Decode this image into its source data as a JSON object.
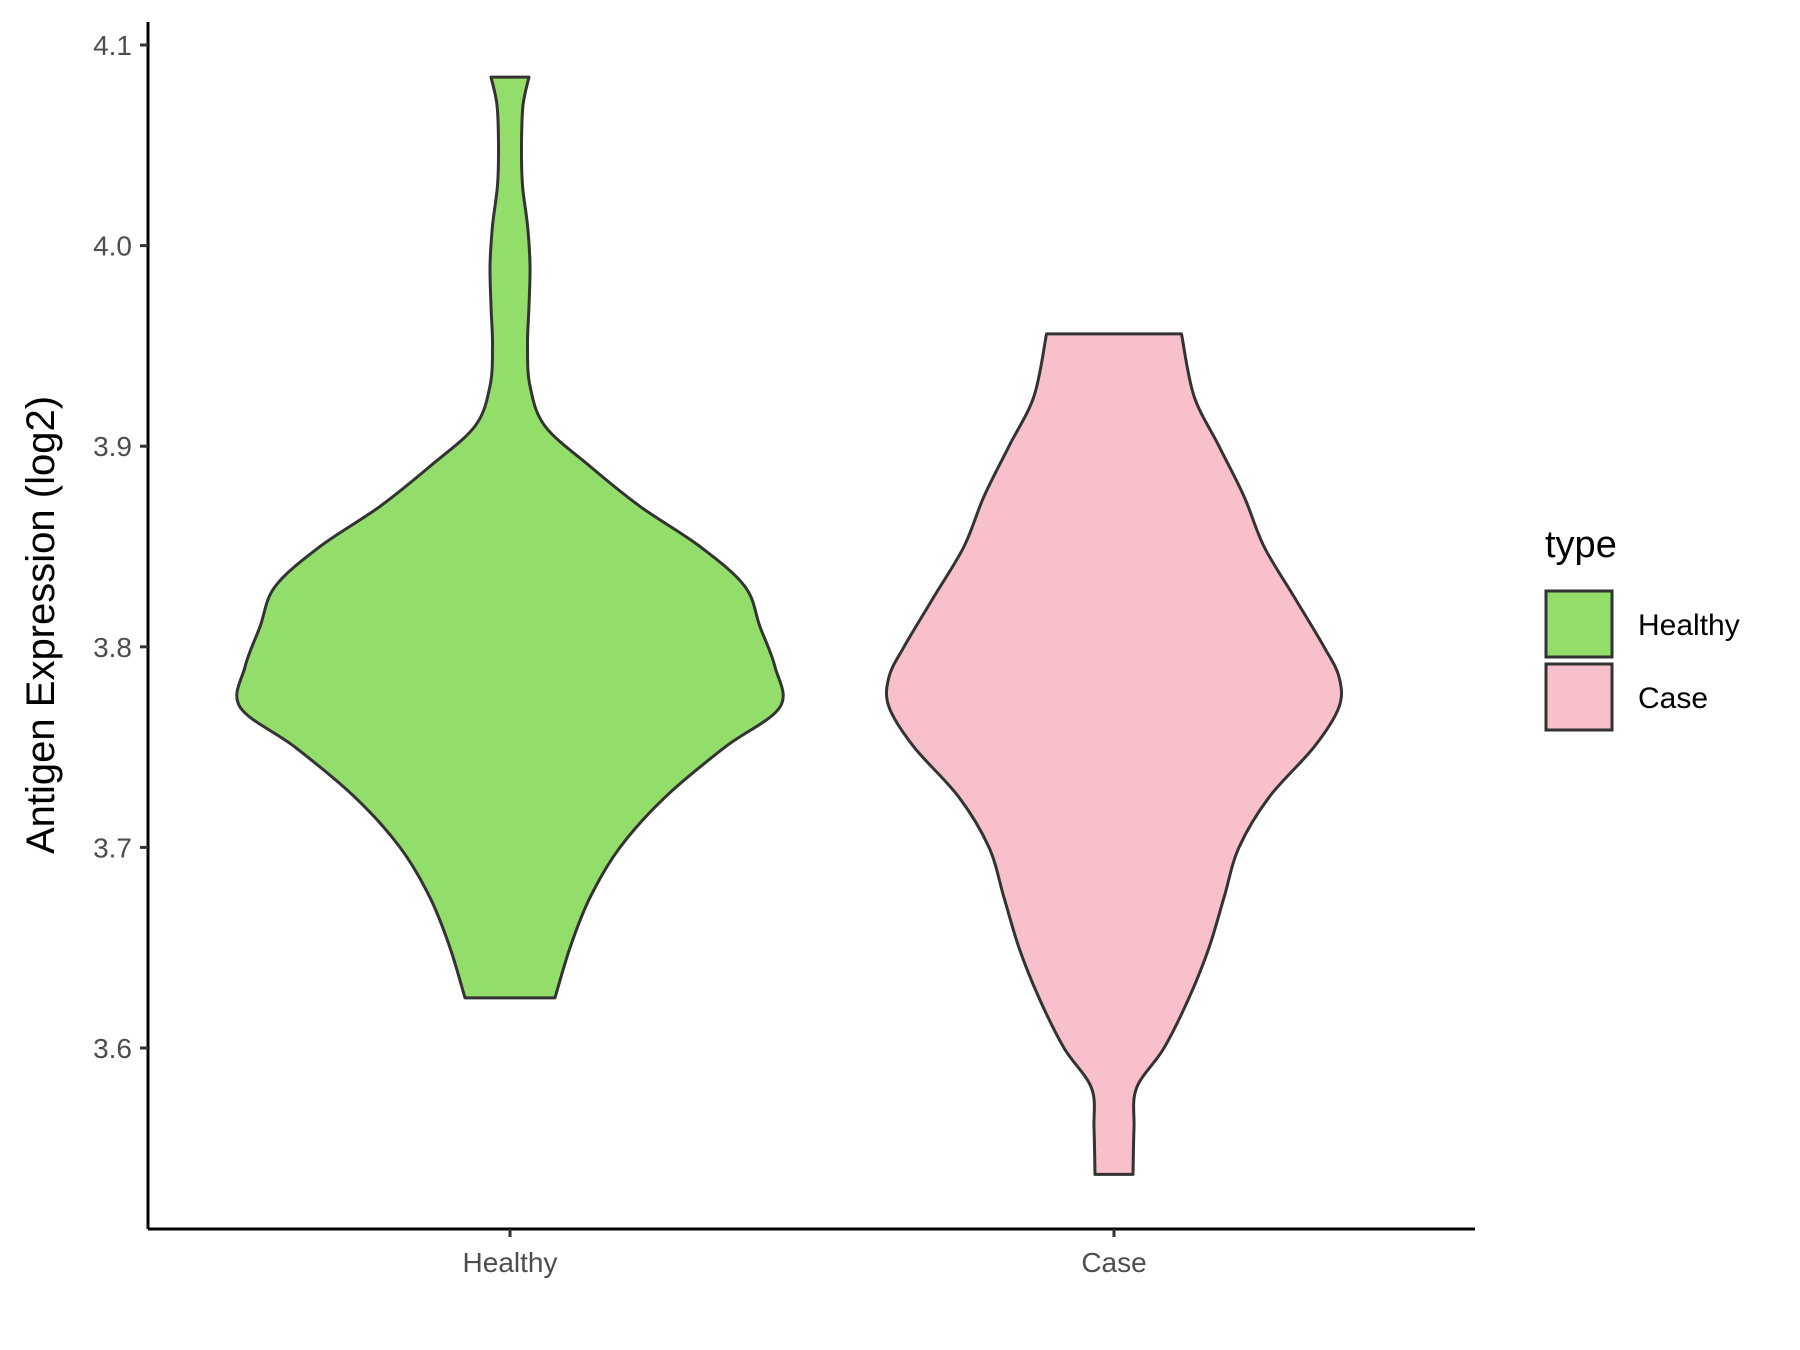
{
  "chart_data": {
    "type": "violin",
    "ylabel": "Antigen Expression (log2)",
    "xlabel": "",
    "categories": [
      "Healthy",
      "Case"
    ],
    "yticks": [
      "3.6",
      "3.7",
      "3.8",
      "3.9",
      "4.0",
      "4.1"
    ],
    "ylim": [
      3.51,
      4.11
    ],
    "legend": {
      "title": "type",
      "position": "right",
      "items": [
        {
          "label": "Healthy",
          "color": "#93dd6a"
        },
        {
          "label": "Case",
          "color": "#f7c0cb"
        }
      ]
    },
    "series": [
      {
        "category": "Healthy",
        "color": "#93dd6a",
        "min": 3.625,
        "max": 4.084,
        "profile": [
          [
            3.625,
            0.09
          ],
          [
            3.65,
            0.12
          ],
          [
            3.675,
            0.16
          ],
          [
            3.7,
            0.22
          ],
          [
            3.725,
            0.31
          ],
          [
            3.75,
            0.43
          ],
          [
            3.77,
            0.54
          ],
          [
            3.79,
            0.53
          ],
          [
            3.81,
            0.5
          ],
          [
            3.83,
            0.47
          ],
          [
            3.85,
            0.38
          ],
          [
            3.87,
            0.26
          ],
          [
            3.89,
            0.16
          ],
          [
            3.91,
            0.07
          ],
          [
            3.93,
            0.04
          ],
          [
            3.95,
            0.035
          ],
          [
            3.97,
            0.038
          ],
          [
            3.99,
            0.04
          ],
          [
            4.01,
            0.035
          ],
          [
            4.03,
            0.025
          ],
          [
            4.05,
            0.023
          ],
          [
            4.07,
            0.026
          ],
          [
            4.084,
            0.038
          ]
        ]
      },
      {
        "category": "Case",
        "color": "#f7c0cb",
        "min": 3.537,
        "max": 3.956,
        "profile": [
          [
            3.537,
            0.038
          ],
          [
            3.56,
            0.04
          ],
          [
            3.58,
            0.045
          ],
          [
            3.6,
            0.1
          ],
          [
            3.625,
            0.15
          ],
          [
            3.65,
            0.19
          ],
          [
            3.675,
            0.22
          ],
          [
            3.7,
            0.25
          ],
          [
            3.725,
            0.31
          ],
          [
            3.75,
            0.4
          ],
          [
            3.77,
            0.45
          ],
          [
            3.785,
            0.45
          ],
          [
            3.8,
            0.42
          ],
          [
            3.825,
            0.36
          ],
          [
            3.85,
            0.3
          ],
          [
            3.875,
            0.26
          ],
          [
            3.9,
            0.21
          ],
          [
            3.925,
            0.16
          ],
          [
            3.956,
            0.135
          ]
        ]
      }
    ]
  }
}
